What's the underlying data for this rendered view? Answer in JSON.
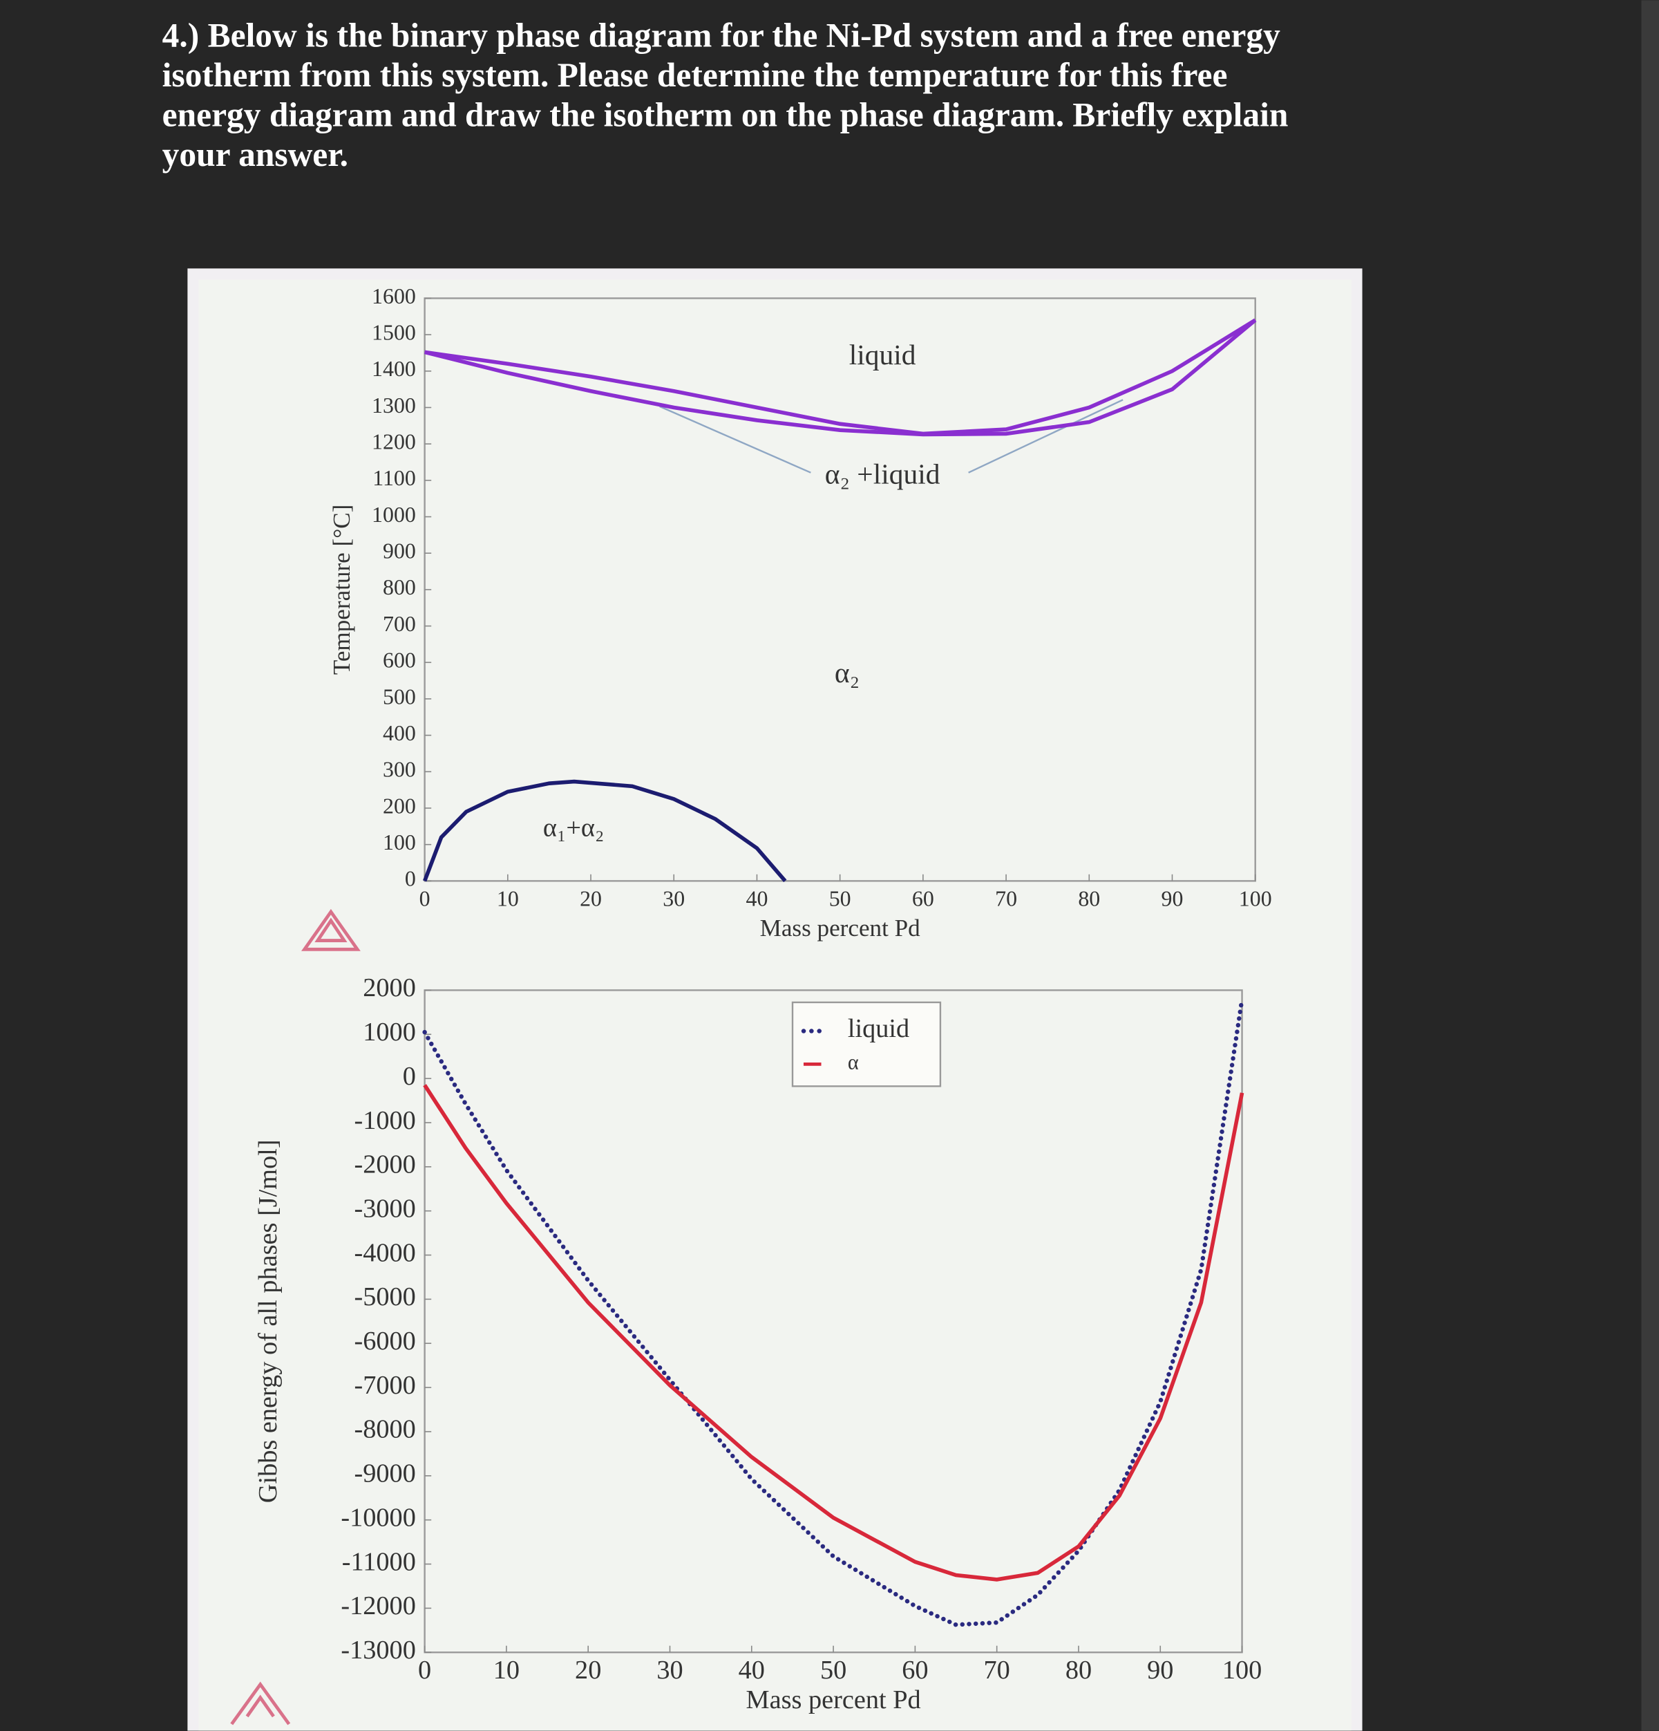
{
  "question": {
    "lines": [
      "4.) Below is the binary phase diagram for the Ni-Pd system and a free energy",
      "isotherm from this system. Please determine the temperature for this free",
      "energy diagram and draw the isotherm on the phase diagram.  Briefly explain",
      "your answer."
    ]
  },
  "chart_data": [
    {
      "type": "line",
      "xlabel": "Mass percent Pd",
      "ylabel": "Temperature [°C]",
      "xlim": [
        0,
        100
      ],
      "ylim": [
        0,
        1600
      ],
      "xticks": [
        0,
        10,
        20,
        30,
        40,
        50,
        60,
        70,
        80,
        90,
        100
      ],
      "yticks": [
        0,
        100,
        200,
        300,
        400,
        500,
        600,
        700,
        800,
        900,
        1000,
        1100,
        1200,
        1300,
        1400,
        1500,
        1600
      ],
      "annotations": [
        "liquid",
        "α₂ +liquid",
        "α₂",
        "α₁+α₂"
      ],
      "series": [
        {
          "color": "#8a2fd0",
          "linestyle": "solid",
          "x": [
            0,
            10,
            20,
            30,
            40,
            50,
            60,
            70,
            80,
            90,
            100
          ],
          "values": [
            1452,
            1420,
            1385,
            1345,
            1300,
            1255,
            1228,
            1240,
            1300,
            1400,
            1540
          ]
        },
        {
          "color": "#8a2fd0",
          "linestyle": "solid",
          "x": [
            0,
            10,
            20,
            30,
            40,
            50,
            60,
            70,
            80,
            90,
            100
          ],
          "values": [
            1452,
            1395,
            1345,
            1300,
            1265,
            1238,
            1226,
            1228,
            1260,
            1350,
            1540
          ]
        },
        {
          "color": "#1c1c70",
          "linestyle": "solid",
          "x": [
            0,
            2,
            5,
            10,
            15,
            18,
            25,
            30,
            35,
            40,
            43.4
          ],
          "values": [
            0,
            120,
            190,
            245,
            268,
            273,
            260,
            225,
            170,
            90,
            0
          ]
        }
      ]
    },
    {
      "type": "line",
      "xlabel": "Mass percent Pd",
      "ylabel": "Gibbs energy of all phases [J/mol]",
      "xlim": [
        0,
        100
      ],
      "ylim": [
        -13000,
        2000
      ],
      "xticks": [
        0,
        10,
        20,
        30,
        40,
        50,
        60,
        70,
        80,
        90,
        100
      ],
      "yticks": [
        -13000,
        -12000,
        -11000,
        -10000,
        -9000,
        -8000,
        -7000,
        -6000,
        -5000,
        -4000,
        -3000,
        -2000,
        -1000,
        0,
        1000,
        2000
      ],
      "legend": "upper center",
      "x": [
        0,
        5,
        10,
        20,
        30,
        40,
        50,
        60,
        65,
        70,
        75,
        80,
        85,
        90,
        95,
        100
      ],
      "series": [
        {
          "name": "liquid",
          "color": "#2a2a80",
          "linestyle": "dotted",
          "values": [
            1050,
            -575,
            -2075,
            -4575,
            -6825,
            -9075,
            -10825,
            -11950,
            -12375,
            -12325,
            -11700,
            -10700,
            -9325,
            -7325,
            -4325,
            1800
          ]
        },
        {
          "name": "α",
          "color": "#d8283a",
          "linestyle": "solid",
          "values": [
            -150,
            -1575,
            -2825,
            -5075,
            -6950,
            -8575,
            -9950,
            -10950,
            -11250,
            -11350,
            -11200,
            -10600,
            -9450,
            -7700,
            -5075,
            -325
          ]
        }
      ]
    }
  ]
}
